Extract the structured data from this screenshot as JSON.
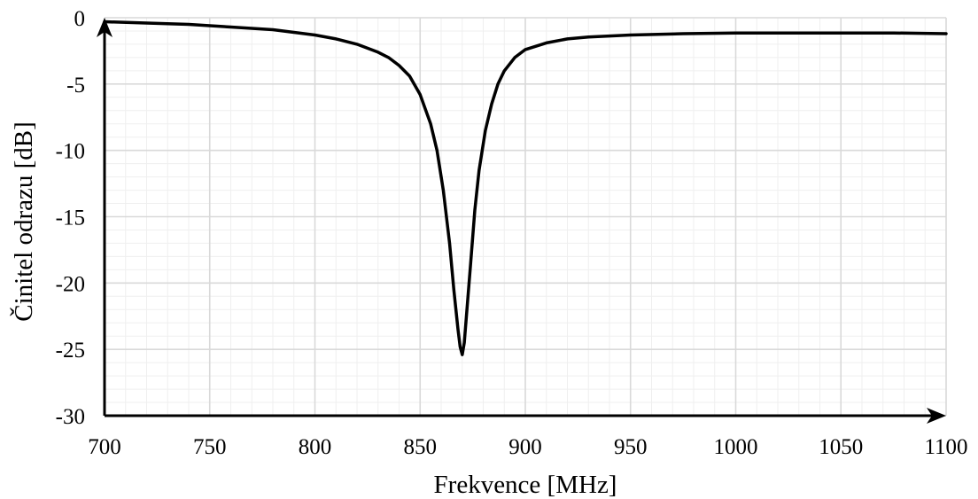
{
  "chart_data": {
    "type": "line",
    "title": "",
    "xlabel": "Frekvence [MHz]",
    "ylabel": "Činitel odrazu [dB]",
    "xlim": [
      700,
      1100
    ],
    "ylim": [
      -30,
      0
    ],
    "x_ticks": [
      "700",
      "750",
      "800",
      "850",
      "900",
      "950",
      "1000",
      "1050",
      "1100"
    ],
    "y_ticks": [
      "0",
      "-5",
      "-10",
      "-15",
      "-20",
      "-25",
      "-30"
    ],
    "grid": true,
    "minor_grid": true,
    "legend": "none",
    "colors": {
      "line": "#000000",
      "major_grid": "#d9d9d9",
      "minor_grid": "#efefef",
      "axes": "#000000"
    },
    "series": [
      {
        "x": [
          700,
          720,
          740,
          760,
          780,
          790,
          800,
          810,
          820,
          830,
          835,
          840,
          845,
          850,
          855,
          858,
          861,
          864,
          866,
          868,
          869,
          870,
          871,
          872,
          874,
          876,
          878,
          881,
          884,
          887,
          890,
          895,
          900,
          910,
          920,
          930,
          950,
          975,
          1000,
          1025,
          1050,
          1075,
          1100
        ],
        "y": [
          -0.3,
          -0.4,
          -0.5,
          -0.7,
          -0.9,
          -1.1,
          -1.3,
          -1.6,
          -2.0,
          -2.6,
          -3.0,
          -3.6,
          -4.4,
          -5.8,
          -8.0,
          -10.0,
          -13.0,
          -17.0,
          -20.5,
          -23.5,
          -24.8,
          -25.4,
          -24.5,
          -22.5,
          -18.5,
          -14.5,
          -11.5,
          -8.5,
          -6.5,
          -5.0,
          -4.0,
          -3.0,
          -2.4,
          -1.9,
          -1.6,
          -1.45,
          -1.3,
          -1.2,
          -1.15,
          -1.15,
          -1.15,
          -1.15,
          -1.2
        ]
      }
    ]
  }
}
